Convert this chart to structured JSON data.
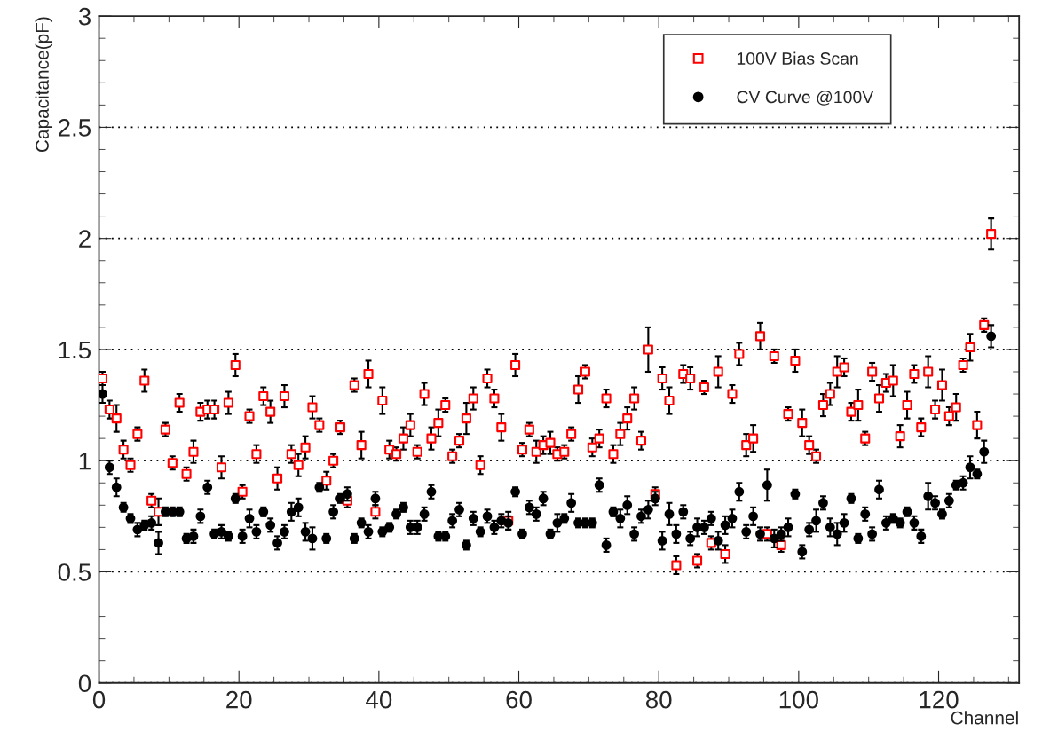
{
  "chart_data": {
    "type": "scatter",
    "xlabel": "Channel",
    "ylabel": "Capacitance(pF)",
    "x": [
      0.5,
      1.5,
      2.5,
      3.5,
      4.5,
      5.5,
      6.5,
      7.5,
      8.5,
      9.5,
      10.5,
      11.5,
      12.5,
      13.5,
      14.5,
      15.5,
      16.5,
      17.5,
      18.5,
      19.5,
      20.5,
      21.5,
      22.5,
      23.5,
      24.5,
      25.5,
      26.5,
      27.5,
      28.5,
      29.5,
      30.5,
      31.5,
      32.5,
      33.5,
      34.5,
      35.5,
      36.5,
      37.5,
      38.5,
      39.5,
      40.5,
      41.5,
      42.5,
      43.5,
      44.5,
      45.5,
      46.5,
      47.5,
      48.5,
      49.5,
      50.5,
      51.5,
      52.5,
      53.5,
      54.5,
      55.5,
      56.5,
      57.5,
      58.5,
      59.5,
      60.5,
      61.5,
      62.5,
      63.5,
      64.5,
      65.5,
      66.5,
      67.5,
      68.5,
      69.5,
      70.5,
      71.5,
      72.5,
      73.5,
      74.5,
      75.5,
      76.5,
      77.5,
      78.5,
      79.5,
      80.5,
      81.5,
      82.5,
      83.5,
      84.5,
      85.5,
      86.5,
      87.5,
      88.5,
      89.5,
      90.5,
      91.5,
      92.5,
      93.5,
      94.5,
      95.5,
      96.5,
      97.5,
      98.5,
      99.5,
      100.5,
      101.5,
      102.5,
      103.5,
      104.5,
      105.5,
      106.5,
      107.5,
      108.5,
      109.5,
      110.5,
      111.5,
      112.5,
      113.5,
      114.5,
      115.5,
      116.5,
      117.5,
      118.5,
      119.5,
      120.5,
      121.5,
      122.5,
      123.5,
      124.5,
      125.5,
      126.5,
      127.5
    ],
    "series": [
      {
        "name": "100V Bias Scan",
        "color": "#ff0000",
        "marker": "square",
        "values": [
          1.37,
          1.23,
          1.19,
          1.05,
          0.98,
          1.12,
          1.36,
          0.82,
          0.77,
          1.14,
          0.99,
          1.26,
          0.94,
          1.04,
          1.22,
          1.23,
          1.23,
          0.97,
          1.26,
          1.43,
          0.86,
          1.2,
          1.03,
          1.29,
          1.22,
          0.92,
          1.29,
          1.03,
          0.98,
          1.06,
          1.24,
          1.16,
          0.91,
          1.0,
          1.15,
          0.82,
          1.34,
          1.07,
          1.39,
          0.77,
          1.27,
          1.05,
          1.03,
          1.1,
          1.16,
          1.04,
          1.3,
          1.1,
          1.17,
          1.25,
          1.02,
          1.09,
          1.19,
          1.28,
          0.98,
          1.37,
          1.28,
          1.15,
          0.73,
          1.43,
          1.05,
          1.14,
          1.04,
          1.07,
          1.08,
          1.03,
          1.04,
          1.12,
          1.32,
          1.4,
          1.06,
          1.1,
          1.28,
          1.03,
          1.12,
          1.19,
          1.28,
          1.09,
          1.5,
          0.85,
          1.37,
          1.27,
          0.53,
          1.39,
          1.37,
          0.55,
          1.33,
          0.63,
          1.4,
          0.58,
          1.3,
          1.48,
          1.07,
          1.1,
          1.56,
          0.67,
          1.47,
          0.62,
          1.21,
          1.45,
          1.17,
          1.07,
          1.02,
          1.25,
          1.3,
          1.4,
          1.42,
          1.22,
          1.25,
          1.1,
          1.4,
          1.28,
          1.35,
          1.36,
          1.11,
          1.25,
          1.39,
          1.15,
          1.4,
          1.23,
          1.34,
          1.2,
          1.24,
          1.43,
          1.51,
          1.16,
          1.61,
          2.02
        ],
        "errors": [
          0.03,
          0.04,
          0.06,
          0.04,
          0.03,
          0.03,
          0.05,
          0.03,
          0.06,
          0.03,
          0.03,
          0.04,
          0.03,
          0.05,
          0.04,
          0.04,
          0.04,
          0.05,
          0.05,
          0.05,
          0.03,
          0.03,
          0.04,
          0.04,
          0.05,
          0.05,
          0.05,
          0.04,
          0.05,
          0.05,
          0.05,
          0.03,
          0.04,
          0.03,
          0.03,
          0.03,
          0.03,
          0.06,
          0.06,
          0.03,
          0.06,
          0.04,
          0.03,
          0.05,
          0.05,
          0.03,
          0.05,
          0.05,
          0.06,
          0.03,
          0.03,
          0.03,
          0.07,
          0.05,
          0.04,
          0.04,
          0.04,
          0.06,
          0.04,
          0.05,
          0.03,
          0.03,
          0.05,
          0.04,
          0.05,
          0.03,
          0.03,
          0.03,
          0.06,
          0.03,
          0.04,
          0.04,
          0.04,
          0.04,
          0.05,
          0.05,
          0.05,
          0.04,
          0.1,
          0.03,
          0.05,
          0.06,
          0.04,
          0.04,
          0.05,
          0.03,
          0.03,
          0.03,
          0.07,
          0.04,
          0.04,
          0.05,
          0.05,
          0.06,
          0.06,
          0.03,
          0.03,
          0.03,
          0.03,
          0.05,
          0.06,
          0.04,
          0.03,
          0.05,
          0.05,
          0.07,
          0.04,
          0.04,
          0.07,
          0.03,
          0.04,
          0.06,
          0.04,
          0.07,
          0.05,
          0.06,
          0.04,
          0.04,
          0.07,
          0.04,
          0.07,
          0.04,
          0.06,
          0.03,
          0.06,
          0.06,
          0.03,
          0.07
        ]
      },
      {
        "name": "CV Curve @100V",
        "color": "#000000",
        "marker": "circle",
        "values": [
          1.3,
          0.97,
          0.88,
          0.79,
          0.74,
          0.69,
          0.71,
          0.72,
          0.63,
          0.77,
          0.77,
          0.77,
          0.65,
          0.66,
          0.75,
          0.88,
          0.67,
          0.68,
          0.66,
          0.83,
          0.66,
          0.74,
          0.68,
          0.77,
          0.71,
          0.63,
          0.68,
          0.77,
          0.79,
          0.68,
          0.65,
          0.88,
          0.65,
          0.77,
          0.83,
          0.85,
          0.65,
          0.72,
          0.68,
          0.83,
          0.68,
          0.7,
          0.76,
          0.79,
          0.7,
          0.7,
          0.76,
          0.86,
          0.66,
          0.66,
          0.73,
          0.78,
          0.62,
          0.74,
          0.68,
          0.75,
          0.7,
          0.73,
          0.72,
          0.86,
          0.67,
          0.79,
          0.76,
          0.83,
          0.67,
          0.72,
          0.74,
          0.81,
          0.72,
          0.72,
          0.72,
          0.89,
          0.62,
          0.77,
          0.74,
          0.8,
          0.67,
          0.75,
          0.78,
          0.83,
          0.64,
          0.76,
          0.67,
          0.77,
          0.65,
          0.7,
          0.7,
          0.74,
          0.64,
          0.71,
          0.74,
          0.86,
          0.68,
          0.75,
          0.67,
          0.89,
          0.65,
          0.67,
          0.7,
          0.85,
          0.59,
          0.69,
          0.73,
          0.81,
          0.7,
          0.67,
          0.72,
          0.83,
          0.65,
          0.76,
          0.67,
          0.87,
          0.72,
          0.74,
          0.72,
          0.77,
          0.72,
          0.66,
          0.84,
          0.81,
          0.76,
          0.82,
          0.89,
          0.9,
          0.97,
          0.94,
          1.04,
          1.56
        ],
        "errors": [
          0.04,
          0.03,
          0.04,
          0.02,
          0.02,
          0.03,
          0.02,
          0.03,
          0.05,
          0.02,
          0.02,
          0.02,
          0.02,
          0.03,
          0.03,
          0.03,
          0.02,
          0.03,
          0.02,
          0.02,
          0.03,
          0.04,
          0.03,
          0.02,
          0.03,
          0.03,
          0.03,
          0.04,
          0.04,
          0.04,
          0.05,
          0.02,
          0.02,
          0.03,
          0.02,
          0.03,
          0.02,
          0.02,
          0.03,
          0.03,
          0.02,
          0.02,
          0.02,
          0.02,
          0.03,
          0.03,
          0.03,
          0.03,
          0.02,
          0.02,
          0.03,
          0.03,
          0.02,
          0.03,
          0.02,
          0.03,
          0.03,
          0.03,
          0.03,
          0.02,
          0.02,
          0.03,
          0.03,
          0.03,
          0.02,
          0.04,
          0.02,
          0.04,
          0.02,
          0.02,
          0.02,
          0.03,
          0.03,
          0.02,
          0.04,
          0.04,
          0.03,
          0.03,
          0.04,
          0.03,
          0.04,
          0.05,
          0.04,
          0.03,
          0.03,
          0.04,
          0.03,
          0.03,
          0.04,
          0.04,
          0.04,
          0.04,
          0.03,
          0.04,
          0.03,
          0.07,
          0.04,
          0.03,
          0.04,
          0.02,
          0.03,
          0.03,
          0.05,
          0.03,
          0.04,
          0.05,
          0.04,
          0.02,
          0.02,
          0.03,
          0.03,
          0.04,
          0.03,
          0.02,
          0.02,
          0.02,
          0.03,
          0.03,
          0.06,
          0.03,
          0.02,
          0.03,
          0.02,
          0.03,
          0.05,
          0.02,
          0.05,
          0.05
        ]
      }
    ],
    "xlim": [
      0,
      131.5
    ],
    "ylim": [
      0,
      3
    ],
    "xticks": [
      0,
      20,
      40,
      60,
      80,
      100,
      120
    ],
    "yticks": [
      0,
      0.5,
      1,
      1.5,
      2,
      2.5,
      3
    ],
    "grid": "y",
    "legend": "top right"
  }
}
